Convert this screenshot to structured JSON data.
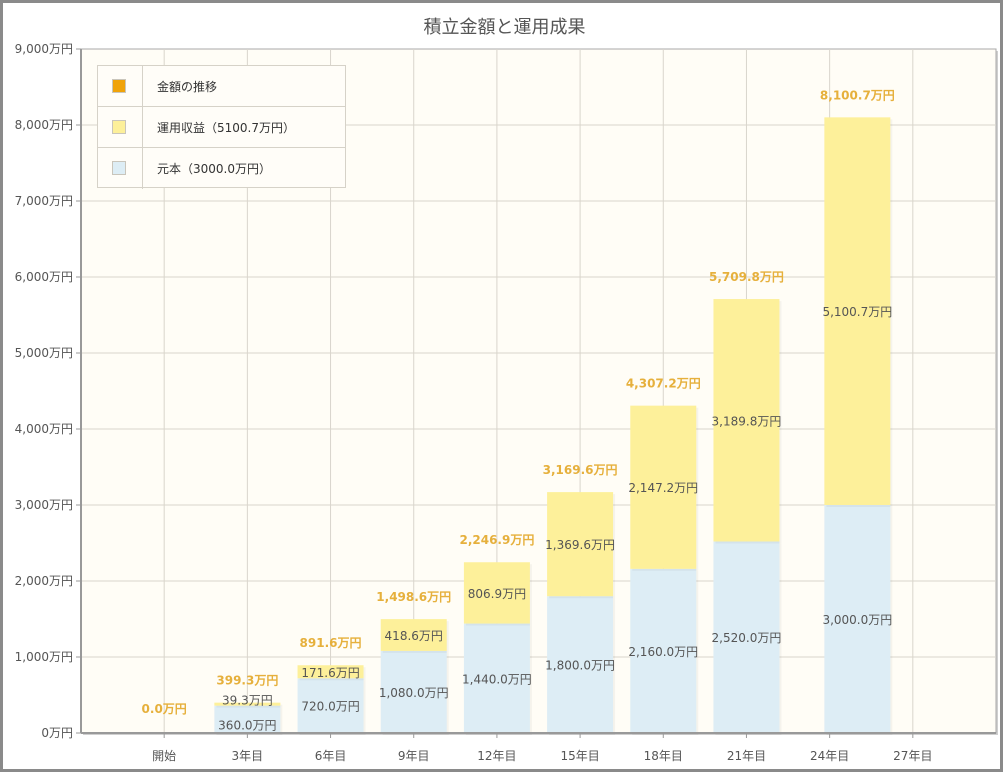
{
  "chart_data": {
    "type": "bar",
    "stacked": true,
    "title": "積立金額と運用成果",
    "xlabel": "",
    "ylabel": "",
    "xlim": [
      -3,
      30
    ],
    "ylim": [
      0,
      9000
    ],
    "grid": true,
    "legend_position": "top-left",
    "x_ticks": [
      {
        "value": 0,
        "label": "開始"
      },
      {
        "value": 3,
        "label": "3年目"
      },
      {
        "value": 6,
        "label": "6年目"
      },
      {
        "value": 9,
        "label": "9年目"
      },
      {
        "value": 12,
        "label": "12年目"
      },
      {
        "value": 15,
        "label": "15年目"
      },
      {
        "value": 18,
        "label": "18年目"
      },
      {
        "value": 21,
        "label": "21年目"
      },
      {
        "value": 24,
        "label": "24年目"
      },
      {
        "value": 27,
        "label": "27年目"
      }
    ],
    "y_ticks": [
      {
        "value": 0,
        "label": "0万円"
      },
      {
        "value": 1000,
        "label": "1,000万円"
      },
      {
        "value": 2000,
        "label": "2,000万円"
      },
      {
        "value": 3000,
        "label": "3,000万円"
      },
      {
        "value": 4000,
        "label": "4,000万円"
      },
      {
        "value": 5000,
        "label": "5,000万円"
      },
      {
        "value": 6000,
        "label": "6,000万円"
      },
      {
        "value": 7000,
        "label": "7,000万円"
      },
      {
        "value": 8000,
        "label": "8,000万円"
      },
      {
        "value": 9000,
        "label": "9,000万円"
      }
    ],
    "x": [
      0,
      3,
      6,
      9,
      12,
      15,
      18,
      21,
      25
    ],
    "series": [
      {
        "name": "元本（3000.0万円）",
        "color": "#ddedf5",
        "values": [
          0,
          360.0,
          720.0,
          1080.0,
          1440.0,
          1800.0,
          2160.0,
          2520.0,
          3000.0
        ],
        "labels": [
          "",
          "360.0万円",
          "720.0万円",
          "1,080.0万円",
          "1,440.0万円",
          "1,800.0万円",
          "2,160.0万円",
          "2,520.0万円",
          "3,000.0万円"
        ]
      },
      {
        "name": "運用収益（5100.7万円）",
        "color": "#fdf09a",
        "values": [
          0,
          39.3,
          171.6,
          418.6,
          806.9,
          1369.6,
          2147.2,
          3189.8,
          5100.7
        ],
        "labels": [
          "",
          "39.3万円",
          "171.6万円",
          "418.6万円",
          "806.9万円",
          "1,369.6万円",
          "2,147.2万円",
          "3,189.8万円",
          "5,100.7万円"
        ]
      }
    ],
    "totals": {
      "name": "金額の推移",
      "color": "#f0a30a",
      "values": [
        0.0,
        399.3,
        891.6,
        1498.6,
        2246.9,
        3169.6,
        4307.2,
        5709.8,
        8100.7
      ],
      "labels": [
        "0.0万円",
        "399.3万円",
        "891.6万円",
        "1,498.6万円",
        "2,246.9万円",
        "3,169.6万円",
        "4,307.2万円",
        "5,709.8万円",
        "8,100.7万円"
      ]
    },
    "legend": [
      {
        "label": "金額の推移",
        "color": "#f0a30a"
      },
      {
        "label": "運用収益（5100.7万円）",
        "color": "#fdf09a"
      },
      {
        "label": "元本（3000.0万円）",
        "color": "#ddedf5"
      }
    ]
  }
}
